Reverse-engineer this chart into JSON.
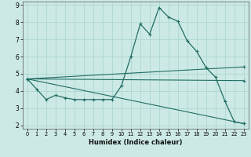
{
  "xlabel": "Humidex (Indice chaleur)",
  "xlim": [
    -0.5,
    23.5
  ],
  "ylim": [
    1.8,
    9.2
  ],
  "yticks": [
    2,
    3,
    4,
    5,
    6,
    7,
    8,
    9
  ],
  "xticks": [
    0,
    1,
    2,
    3,
    4,
    5,
    6,
    7,
    8,
    9,
    10,
    11,
    12,
    13,
    14,
    15,
    16,
    17,
    18,
    19,
    20,
    21,
    22,
    23
  ],
  "line_color": "#216e65",
  "bg_color": "#cce9e5",
  "grid_color": "#a8d4ce",
  "main_series_x": [
    0,
    1,
    2,
    3,
    4,
    5,
    6,
    7,
    8,
    9,
    10,
    11,
    12,
    13,
    14,
    15,
    16,
    17,
    18,
    19,
    20,
    21,
    22,
    23
  ],
  "main_series_y": [
    4.7,
    4.1,
    3.5,
    3.75,
    3.6,
    3.5,
    3.5,
    3.5,
    3.5,
    3.5,
    4.3,
    6.0,
    7.9,
    7.3,
    8.85,
    8.3,
    8.05,
    6.9,
    6.3,
    5.35,
    4.8,
    3.4,
    2.2,
    2.1
  ],
  "regression_lines": [
    {
      "x": [
        0,
        23
      ],
      "y": [
        4.7,
        5.4
      ]
    },
    {
      "x": [
        0,
        23
      ],
      "y": [
        4.7,
        4.6
      ]
    },
    {
      "x": [
        0,
        23
      ],
      "y": [
        4.7,
        2.1
      ]
    }
  ]
}
